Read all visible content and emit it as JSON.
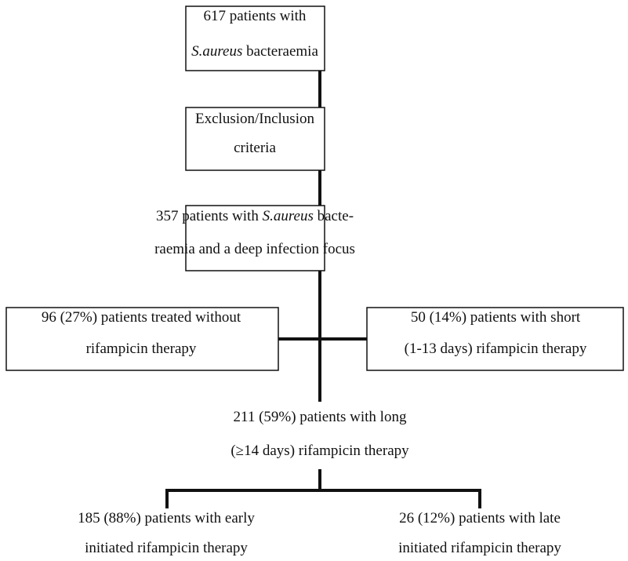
{
  "nodes": [
    {
      "lines": [
        [
          {
            "text": "617 patients with"
          }
        ],
        [
          {
            "text": "S.aureus",
            "italic": true
          },
          {
            "text": " bacteraemia"
          }
        ]
      ]
    },
    {
      "lines": [
        [
          {
            "text": "Exclusion/Inclusion"
          }
        ],
        [
          {
            "text": "criteria"
          }
        ]
      ]
    },
    {
      "lines": [
        [
          {
            "text": "357 patients with "
          },
          {
            "text": "S.aureus",
            "italic": true
          },
          {
            "text": " bacte-"
          }
        ],
        [
          {
            "text": "raemia and a deep infection focus"
          }
        ]
      ]
    },
    {
      "lines": [
        [
          {
            "text": "96 (27%) patients treated without"
          }
        ],
        [
          {
            "text": "rifampicin therapy"
          }
        ]
      ]
    },
    {
      "lines": [
        [
          {
            "text": "50 (14%) patients with short"
          }
        ],
        [
          {
            "text": "(1-13 days) rifampicin therapy"
          }
        ]
      ]
    },
    {
      "lines": [
        [
          {
            "text": "211 (59%) patients with long"
          }
        ],
        [
          {
            "text": "(≥14 days) rifampicin therapy"
          }
        ]
      ]
    },
    {
      "lines": [
        [
          {
            "text": "185 (88%) patients with early"
          }
        ],
        [
          {
            "text": "initiated rifampicin therapy"
          }
        ]
      ]
    },
    {
      "lines": [
        [
          {
            "text": "26 (12%) patients with late"
          }
        ],
        [
          {
            "text": "initiated rifampicin therapy"
          }
        ]
      ]
    }
  ]
}
